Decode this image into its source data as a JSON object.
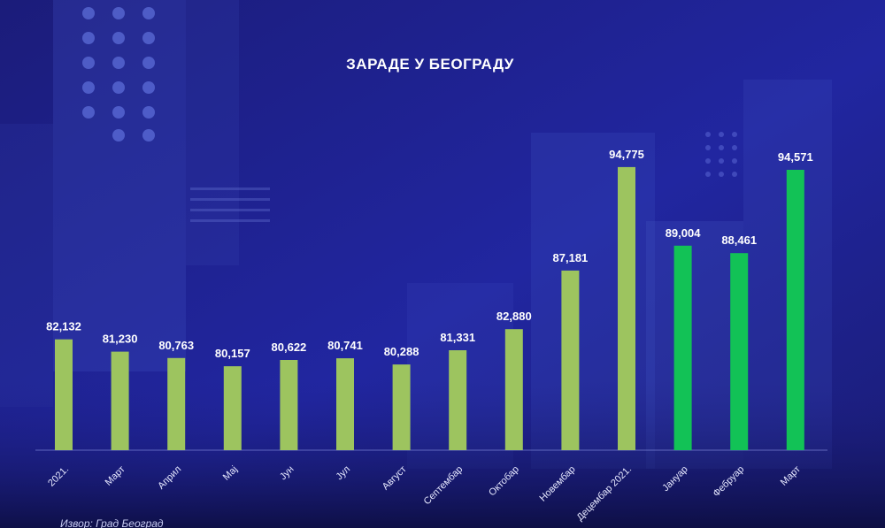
{
  "chart_data": {
    "type": "bar",
    "title": "ЗАРАДЕ У БЕОГРАДУ",
    "categories": [
      "2021.",
      "Март",
      "Април",
      "Мај",
      "Јун",
      "Јул",
      "Август",
      "Септембар",
      "Октобар",
      "Новембар",
      "Децембар 2021.",
      "Јануар",
      "Фебруар",
      "Март"
    ],
    "values": [
      82132,
      81230,
      80763,
      80157,
      80622,
      80741,
      80288,
      81331,
      82880,
      87181,
      94775,
      89004,
      88461,
      94571
    ],
    "value_labels": [
      "82,132",
      "81,230",
      "80,763",
      "80,157",
      "80,622",
      "80,741",
      "80,288",
      "81,331",
      "82,880",
      "87,181",
      "94,775",
      "89,004",
      "88,461",
      "94,571"
    ],
    "ylim": [
      74000,
      96000
    ],
    "grid": false,
    "colors": {
      "bar_2021": "#9dc45f",
      "bar_2022": "#12c256",
      "background": "#1d1f86",
      "text": "#ffffff"
    },
    "highlight_from_index": 11
  },
  "source": "Извор: Град Београд"
}
